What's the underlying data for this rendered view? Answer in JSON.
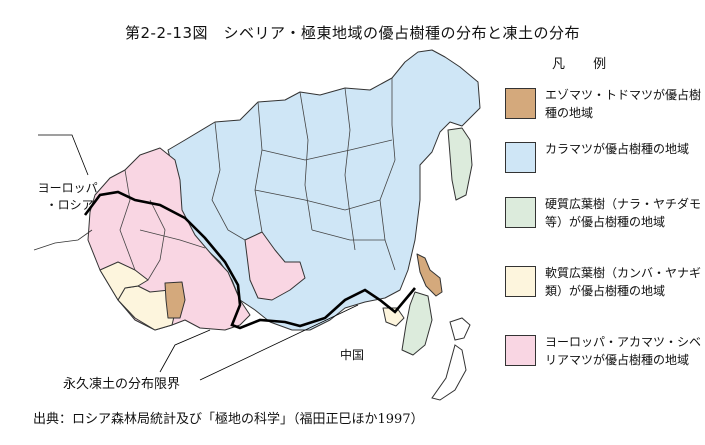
{
  "title": "第2-2-13図　シベリア・極東地域の優占樹種の分布と凍土の分布",
  "legend": {
    "heading": "凡 例",
    "items": [
      {
        "text": "エゾマツ・トドマツが優占樹種の地域",
        "color": "#d4a97c"
      },
      {
        "text": "カラマツが優占樹種の地域",
        "color": "#cfe6f6"
      },
      {
        "text": "硬質広葉樹（ナラ・ヤチダモ等）が優占樹種の地域",
        "color": "#dcebdc"
      },
      {
        "text": "軟質広葉樹（カンバ・ヤナギ類）が優占樹種の地域",
        "color": "#fdf5dd"
      },
      {
        "text": "ヨーロッパ・アカマツ・シベリアマツが優占樹種の地域",
        "color": "#f9d6e3"
      }
    ]
  },
  "map_labels": {
    "europe_russia_1": "ヨーロッパ",
    "europe_russia_2": "・ロシア",
    "china": "中国",
    "permafrost_limit": "永久凍土の分布限界"
  },
  "source": "出典：ロシア森林局統計及び「極地の科学」（福田正巳ほか1997）"
}
